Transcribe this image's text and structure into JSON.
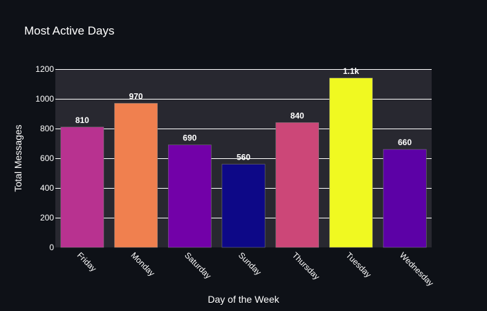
{
  "chart_data": {
    "type": "bar",
    "title": "Most Active Days",
    "xlabel": "Day of the Week",
    "ylabel": "Total Messages",
    "categories": [
      "Friday",
      "Monday",
      "Saturday",
      "Sunday",
      "Thursday",
      "Tuesday",
      "Wednesday"
    ],
    "values": [
      810,
      970,
      690,
      560,
      840,
      1140,
      660
    ],
    "value_labels": [
      "810",
      "970",
      "690",
      "560",
      "840",
      "1.1k",
      "660"
    ],
    "bar_colors": [
      "#b83290",
      "#f0804f",
      "#7201a8",
      "#0d0887",
      "#cc4778",
      "#f0f921",
      "#5c01a6"
    ],
    "ylim": [
      0,
      1200
    ],
    "yticks": [
      0,
      200,
      400,
      600,
      800,
      1000,
      1200
    ],
    "ytick_labels": [
      "0",
      "200",
      "400",
      "600",
      "800",
      "1000",
      "1200"
    ],
    "grid": true,
    "legend": false,
    "colors": {
      "background": "#0e1117",
      "plot_background": "#282830",
      "grid": "#ffffff",
      "text": "#ffffff"
    }
  }
}
